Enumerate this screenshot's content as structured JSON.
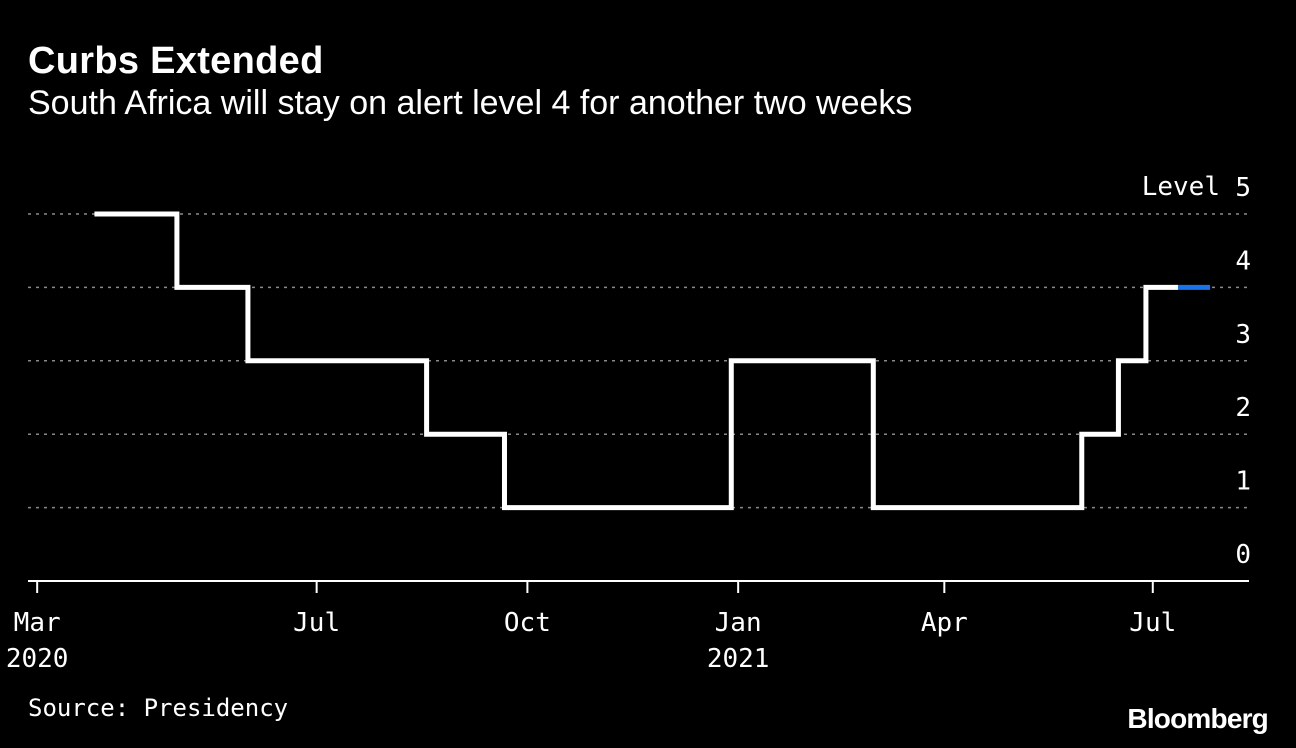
{
  "header": {
    "title": "Curbs Extended",
    "subtitle": "South Africa will stay on alert level 4 for another two weeks"
  },
  "footer": {
    "source": "Source: Presidency",
    "brand": "Bloomberg"
  },
  "colors": {
    "background": "#000000",
    "line": "#ffffff",
    "highlight": "#1a73e8",
    "grid": "#8a8a8a"
  },
  "chart_data": {
    "type": "line",
    "step": true,
    "ylabel": "Level",
    "ylim": [
      0,
      5
    ],
    "yticks": [
      0,
      1,
      2,
      3,
      4,
      5
    ],
    "grid": true,
    "xlim": [
      "2020-02-26",
      "2021-08-12"
    ],
    "xticks": [
      {
        "date": "2020-03-01",
        "label": "Mar",
        "year": "2020"
      },
      {
        "date": "2020-07-01",
        "label": "Jul",
        "year": ""
      },
      {
        "date": "2020-10-01",
        "label": "Oct",
        "year": ""
      },
      {
        "date": "2021-01-01",
        "label": "Jan",
        "year": "2021"
      },
      {
        "date": "2021-04-01",
        "label": "Apr",
        "year": ""
      },
      {
        "date": "2021-07-01",
        "label": "Jul",
        "year": ""
      }
    ],
    "series": [
      {
        "color": "#ffffff",
        "points": [
          {
            "x": "2020-03-26",
            "y": 5
          },
          {
            "x": "2020-05-01",
            "y": 4
          },
          {
            "x": "2020-06-01",
            "y": 3
          },
          {
            "x": "2020-08-18",
            "y": 2
          },
          {
            "x": "2020-09-21",
            "y": 1
          },
          {
            "x": "2020-12-29",
            "y": 3
          },
          {
            "x": "2021-03-01",
            "y": 1
          },
          {
            "x": "2021-05-31",
            "y": 2
          },
          {
            "x": "2021-06-16",
            "y": 3
          },
          {
            "x": "2021-06-28",
            "y": 4
          },
          {
            "x": "2021-07-12",
            "y": 4
          }
        ]
      },
      {
        "color": "#1a73e8",
        "points": [
          {
            "x": "2021-07-12",
            "y": 4
          },
          {
            "x": "2021-07-26",
            "y": 4
          }
        ]
      }
    ]
  }
}
